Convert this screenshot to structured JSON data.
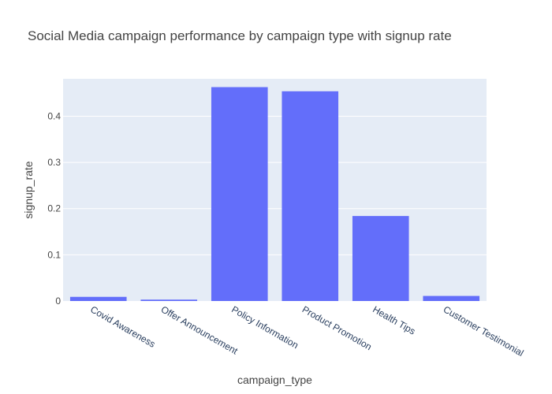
{
  "chart_data": {
    "type": "bar",
    "title": "Social Media campaign performance by campaign type with signup rate",
    "xlabel": "campaign_type",
    "ylabel": "signup_rate",
    "categories": [
      "Covid Awareness",
      "Offer Announcement",
      "Policy Information",
      "Product Promotion",
      "Health Tips",
      "Customer Testimonial"
    ],
    "values": [
      0.009,
      0.003,
      0.463,
      0.454,
      0.184,
      0.011
    ],
    "ylim": [
      0,
      0.481
    ],
    "yticks": [
      0,
      0.1,
      0.2,
      0.3,
      0.4
    ],
    "ytick_labels": [
      "0",
      "0.1",
      "0.2",
      "0.3",
      "0.4"
    ],
    "grid": true,
    "bar_color": "#636efa",
    "plot_bg": "#e5ecf6"
  }
}
